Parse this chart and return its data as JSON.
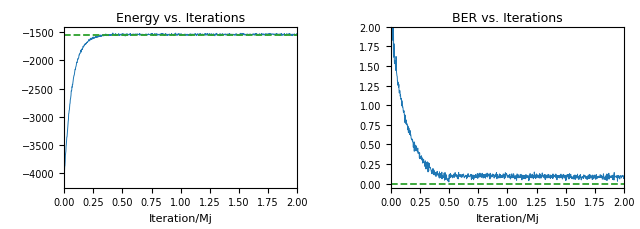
{
  "title1": "Energy vs. Iterations",
  "title2": "BER vs. Iterations",
  "xlabel": "Iteration/Mj",
  "line_color": "#1f77b4",
  "hline_color": "#2ca02c",
  "energy_hline": -1540,
  "ber_hline": 0.0,
  "energy_ylim": [
    -4250,
    -1400
  ],
  "ber_ylim": [
    -0.05,
    2.0
  ],
  "xlim": [
    0.0,
    2.0
  ],
  "energy_yticks": [
    -4000,
    -3500,
    -3000,
    -2500,
    -2000,
    -1500
  ],
  "ber_yticks": [
    0.0,
    0.25,
    0.5,
    0.75,
    1.0,
    1.25,
    1.5,
    1.75,
    2.0
  ],
  "xticks": [
    0.0,
    0.25,
    0.5,
    0.75,
    1.0,
    1.25,
    1.5,
    1.75,
    2.0
  ]
}
